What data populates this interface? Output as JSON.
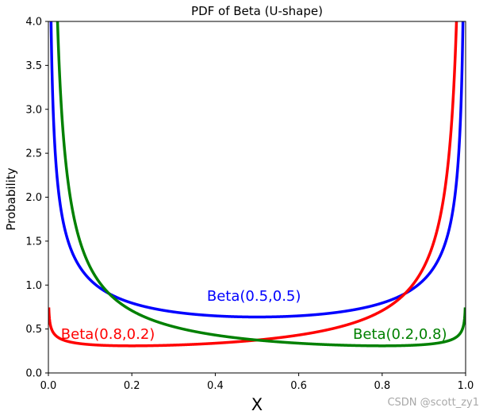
{
  "chart_data": {
    "type": "line",
    "title": "PDF of Beta (U-shape)",
    "xlabel": "X",
    "ylabel": "Probability",
    "xlim": [
      0.0,
      1.0
    ],
    "ylim": [
      0.0,
      4.0
    ],
    "xticks": [
      "0.0",
      "0.2",
      "0.4",
      "0.6",
      "0.8",
      "1.0"
    ],
    "yticks": [
      "0.0",
      "0.5",
      "1.0",
      "1.5",
      "2.0",
      "2.5",
      "3.0",
      "3.5",
      "4.0"
    ],
    "grid": false,
    "series": [
      {
        "name": "Beta(0.5,0.5)",
        "color": "#0000ff",
        "alpha": 0.5,
        "beta": 0.5,
        "annotation": {
          "x": 0.38,
          "y": 0.82
        }
      },
      {
        "name": "Beta(0.8,0.2)",
        "color": "#ff0000",
        "alpha": 0.8,
        "beta": 0.2,
        "annotation": {
          "x": 0.03,
          "y": 0.39
        }
      },
      {
        "name": "Beta(0.2,0.8)",
        "color": "#008000",
        "alpha": 0.2,
        "beta": 0.8,
        "annotation": {
          "x": 0.73,
          "y": 0.39
        }
      }
    ]
  },
  "watermark": "CSDN @scott_zy1"
}
